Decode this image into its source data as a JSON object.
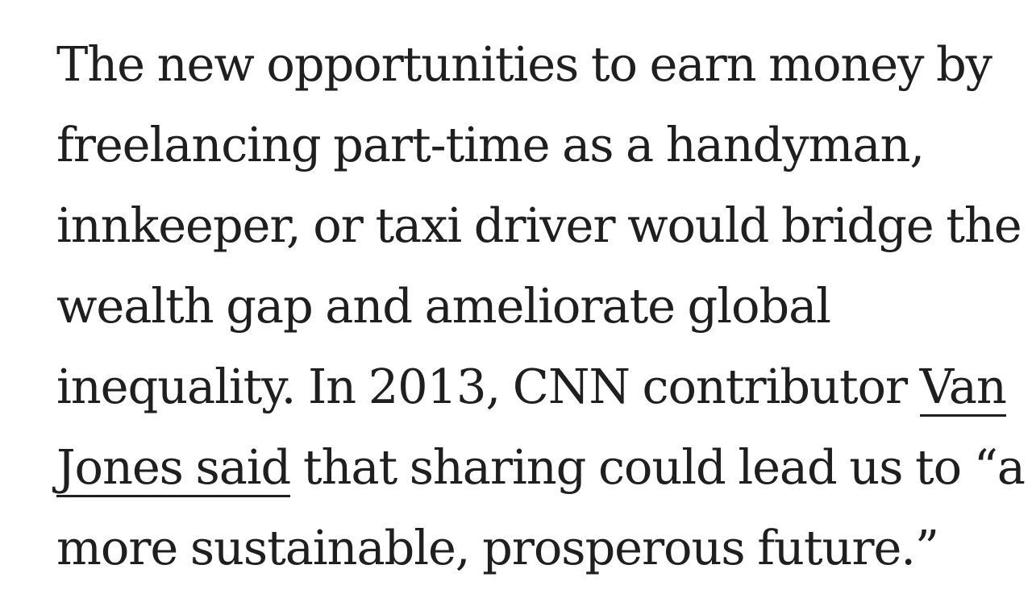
{
  "article": {
    "paragraph": {
      "line1": "The new opportunities to earn money by",
      "line2": "freelancing part-time as a handyman,",
      "line3": "innkeeper, or taxi driver would bridge the",
      "line4": "wealth gap and ameliorate global",
      "line5_text": "inequality. In 2013, CNN contributor ",
      "link_part1": "Van",
      "link_part2": "Jones said",
      "line6_text": " that sharing could lead us to “a",
      "line7": "more sustainable, prosperous future.”"
    }
  }
}
